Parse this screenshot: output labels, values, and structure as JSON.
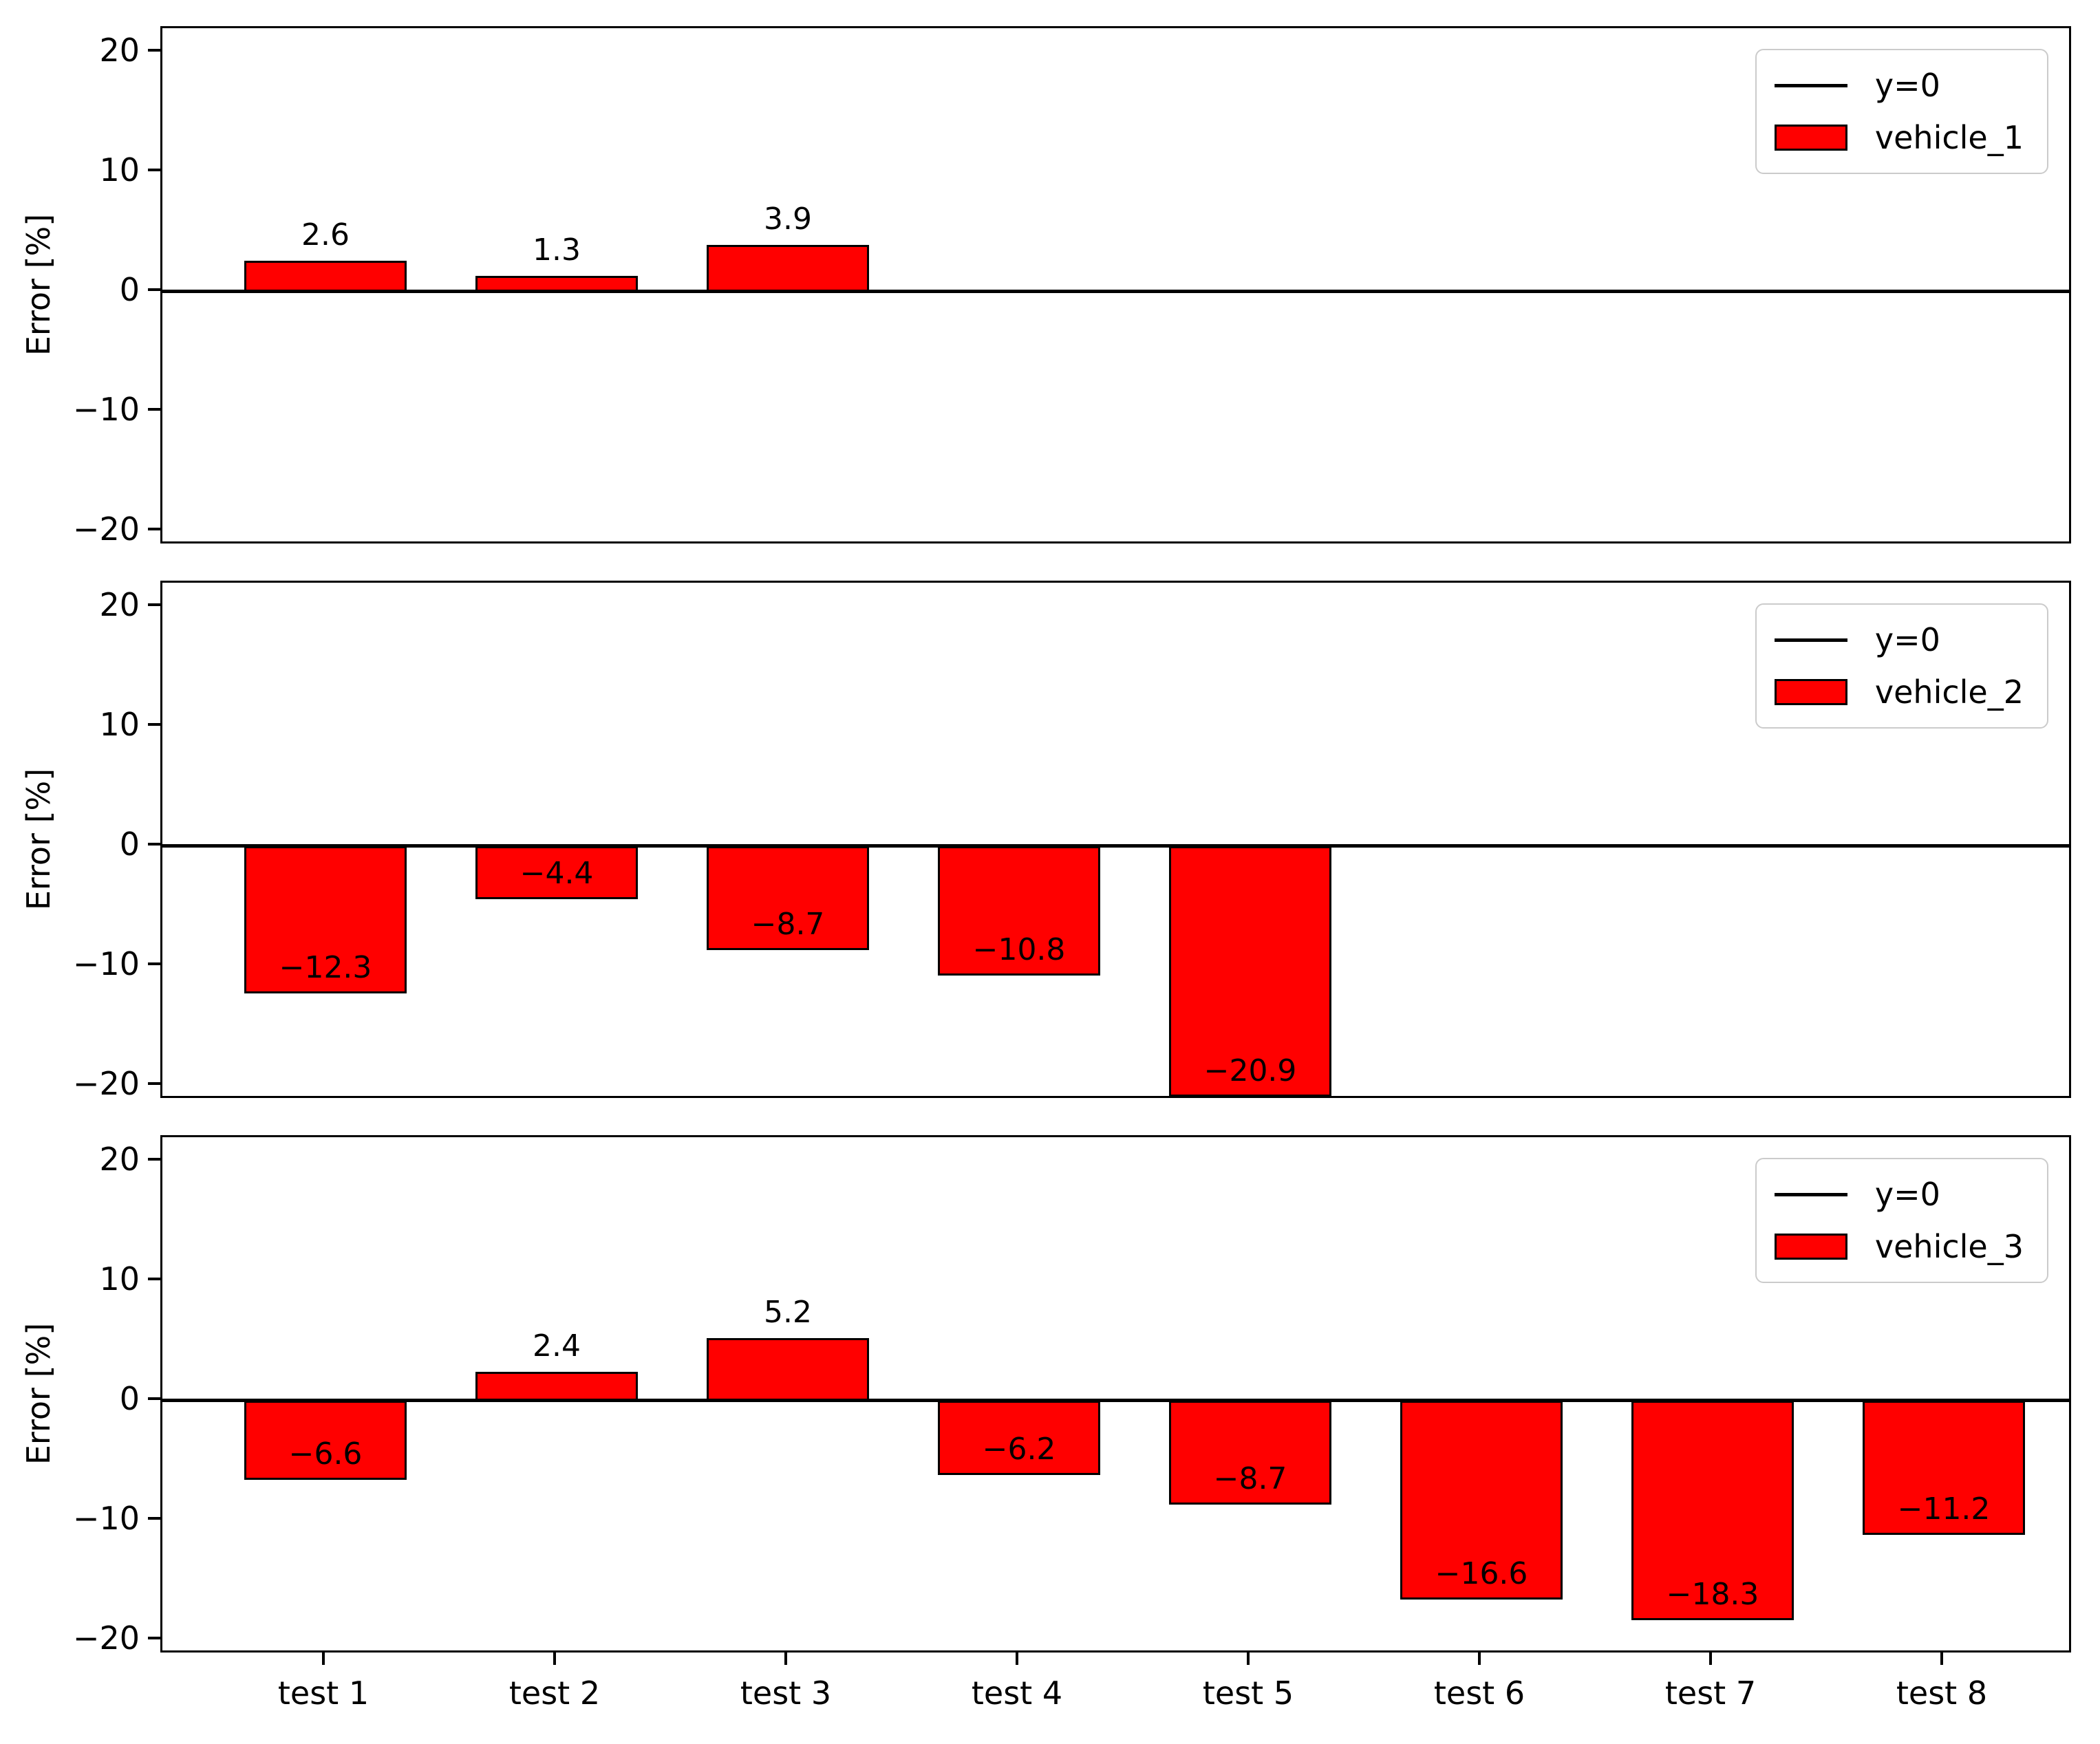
{
  "figure": {
    "background": "#ffffff",
    "bar_fill_color": "#ff0000",
    "bar_edge_color": "#000000",
    "zero_line_color": "#000000"
  },
  "chart_data": [
    {
      "type": "bar",
      "title": "",
      "xlabel": "",
      "ylabel": "Error [%]",
      "categories": [
        "test 1",
        "test 2",
        "test 3",
        "test 4",
        "test 5",
        "test 6",
        "test 7",
        "test 8"
      ],
      "series": [
        {
          "name": "vehicle_1",
          "color": "#ff0000",
          "values": [
            2.6,
            1.3,
            3.9,
            null,
            null,
            null,
            null,
            null
          ]
        }
      ],
      "bar_labels": [
        "2.6",
        "1.3",
        "3.9",
        null,
        null,
        null,
        null,
        null
      ],
      "yticks": [
        20,
        10,
        0,
        -10,
        -20
      ],
      "yticklabels": [
        "20",
        "10",
        "0",
        "−10",
        "−20"
      ],
      "ylim": [
        -21.2,
        22
      ],
      "grid": false,
      "zero_line": true,
      "legend_position": "upper right",
      "legend": [
        {
          "label": "y=0",
          "swatch": "line",
          "color": "#000000"
        },
        {
          "label": "vehicle_1",
          "swatch": "patch",
          "color": "#ff0000"
        }
      ],
      "show_xticklabels": false
    },
    {
      "type": "bar",
      "title": "",
      "xlabel": "",
      "ylabel": "Error [%]",
      "categories": [
        "test 1",
        "test 2",
        "test 3",
        "test 4",
        "test 5",
        "test 6",
        "test 7",
        "test 8"
      ],
      "series": [
        {
          "name": "vehicle_2",
          "color": "#ff0000",
          "values": [
            -12.3,
            -4.4,
            -8.7,
            -10.8,
            -20.9,
            null,
            null,
            null
          ]
        }
      ],
      "bar_labels": [
        "−12.3",
        "−4.4",
        "−8.7",
        "−10.8",
        "−20.9",
        null,
        null,
        null
      ],
      "yticks": [
        20,
        10,
        0,
        -10,
        -20
      ],
      "yticklabels": [
        "20",
        "10",
        "0",
        "−10",
        "−20"
      ],
      "ylim": [
        -21.2,
        22
      ],
      "grid": false,
      "zero_line": true,
      "legend_position": "upper right",
      "legend": [
        {
          "label": "y=0",
          "swatch": "line",
          "color": "#000000"
        },
        {
          "label": "vehicle_2",
          "swatch": "patch",
          "color": "#ff0000"
        }
      ],
      "show_xticklabels": false
    },
    {
      "type": "bar",
      "title": "",
      "xlabel": "",
      "ylabel": "Error [%]",
      "categories": [
        "test 1",
        "test 2",
        "test 3",
        "test 4",
        "test 5",
        "test 6",
        "test 7",
        "test 8"
      ],
      "series": [
        {
          "name": "vehicle_3",
          "color": "#ff0000",
          "values": [
            -6.6,
            2.4,
            5.2,
            -6.2,
            -8.7,
            -16.6,
            -18.3,
            -11.2
          ]
        }
      ],
      "bar_labels": [
        "−6.6",
        "2.4",
        "5.2",
        "−6.2",
        "−8.7",
        "−16.6",
        "−18.3",
        "−11.2"
      ],
      "yticks": [
        20,
        10,
        0,
        -10,
        -20
      ],
      "yticklabels": [
        "20",
        "10",
        "0",
        "−10",
        "−20"
      ],
      "ylim": [
        -21.2,
        22
      ],
      "grid": false,
      "zero_line": true,
      "legend_position": "upper right",
      "legend": [
        {
          "label": "y=0",
          "swatch": "line",
          "color": "#000000"
        },
        {
          "label": "vehicle_3",
          "swatch": "patch",
          "color": "#ff0000"
        }
      ],
      "show_xticklabels": true
    }
  ]
}
